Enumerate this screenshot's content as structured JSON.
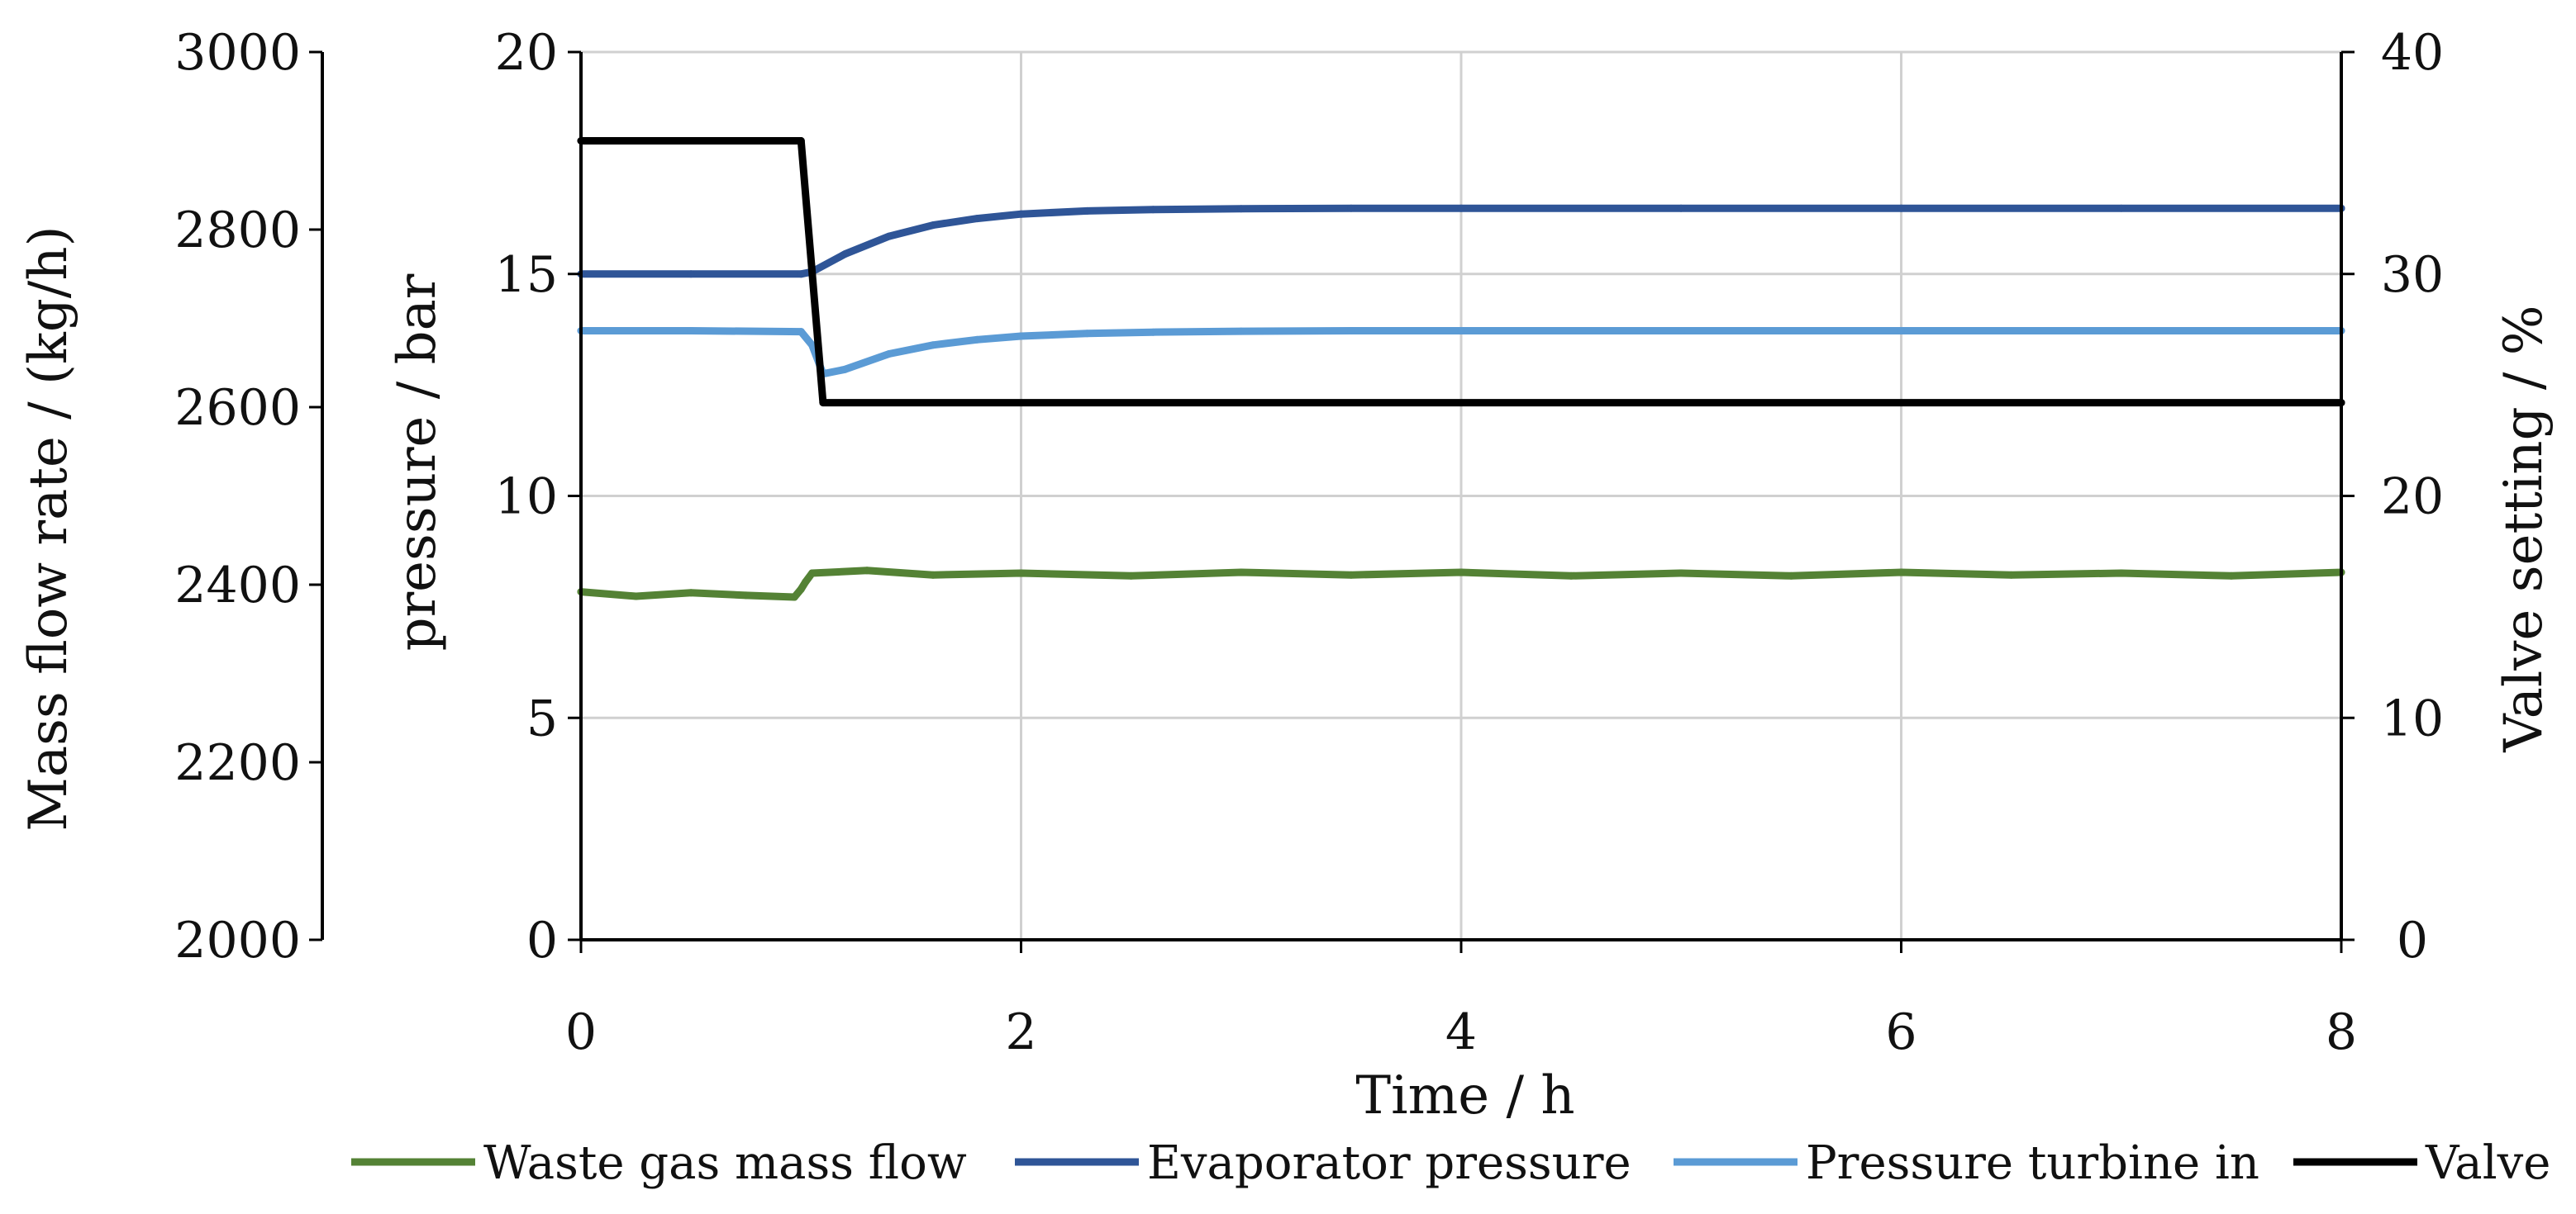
{
  "chart_data": {
    "type": "line",
    "xlabel": "Time / h",
    "ylabel_left_outer": "Mass flow rate / (kg/h)",
    "ylabel_left": "pressure / bar",
    "ylabel_right": "Valve setting / %",
    "xlim": [
      0,
      8
    ],
    "ylim_pressure": [
      0,
      20
    ],
    "ylim_mass_flow": [
      2000,
      3000
    ],
    "ylim_valve": [
      0,
      40
    ],
    "x_ticks": [
      "0",
      "2",
      "4",
      "6",
      "8"
    ],
    "pressure_ticks": [
      "0",
      "5",
      "10",
      "15",
      "20"
    ],
    "mass_flow_ticks": [
      "2000",
      "2200",
      "2400",
      "2600",
      "2800",
      "3000"
    ],
    "valve_ticks": [
      "0",
      "10",
      "20",
      "30",
      "40"
    ],
    "grid": "major x and y",
    "legend_position": "bottom",
    "series": [
      {
        "name": "Waste gas mass flow",
        "axis": "mass_flow",
        "color": "#548235",
        "x": [
          0,
          0.25,
          0.5,
          0.75,
          0.97,
          1.0,
          1.02,
          1.05,
          1.3,
          1.6,
          2.0,
          2.5,
          3.0,
          3.5,
          4.0,
          4.5,
          5.0,
          5.5,
          6.0,
          6.5,
          7.0,
          7.5,
          8.0
        ],
        "values": [
          2392,
          2387,
          2391,
          2388,
          2386,
          2395,
          2403,
          2413,
          2416,
          2411,
          2413,
          2410,
          2414,
          2411,
          2414,
          2410,
          2413,
          2410,
          2414,
          2411,
          2413,
          2410,
          2414
        ]
      },
      {
        "name": "Evaporator pressure",
        "axis": "pressure",
        "color": "#2F5597",
        "x": [
          0,
          0.5,
          1.0,
          1.05,
          1.2,
          1.4,
          1.6,
          1.8,
          2.0,
          2.3,
          2.6,
          3.0,
          3.5,
          4.0,
          5.0,
          6.0,
          7.0,
          8.0
        ],
        "values": [
          15.0,
          15.0,
          15.0,
          15.05,
          15.45,
          15.85,
          16.1,
          16.25,
          16.35,
          16.42,
          16.45,
          16.47,
          16.48,
          16.48,
          16.48,
          16.48,
          16.48,
          16.48
        ]
      },
      {
        "name": "Pressure turbine in",
        "axis": "pressure",
        "color": "#5B9BD5",
        "x": [
          0,
          0.5,
          1.0,
          1.05,
          1.1,
          1.2,
          1.4,
          1.6,
          1.8,
          2.0,
          2.3,
          2.6,
          3.0,
          3.5,
          4.0,
          5.0,
          6.0,
          7.0,
          8.0
        ],
        "values": [
          13.72,
          13.72,
          13.7,
          13.4,
          12.75,
          12.85,
          13.2,
          13.4,
          13.52,
          13.6,
          13.66,
          13.69,
          13.71,
          13.72,
          13.72,
          13.72,
          13.72,
          13.72,
          13.72
        ]
      },
      {
        "name": "Valve",
        "axis": "valve",
        "color": "#000000",
        "x": [
          0,
          1.0,
          1.1,
          8.0
        ],
        "values": [
          36,
          36,
          24.2,
          24.2
        ]
      }
    ]
  }
}
